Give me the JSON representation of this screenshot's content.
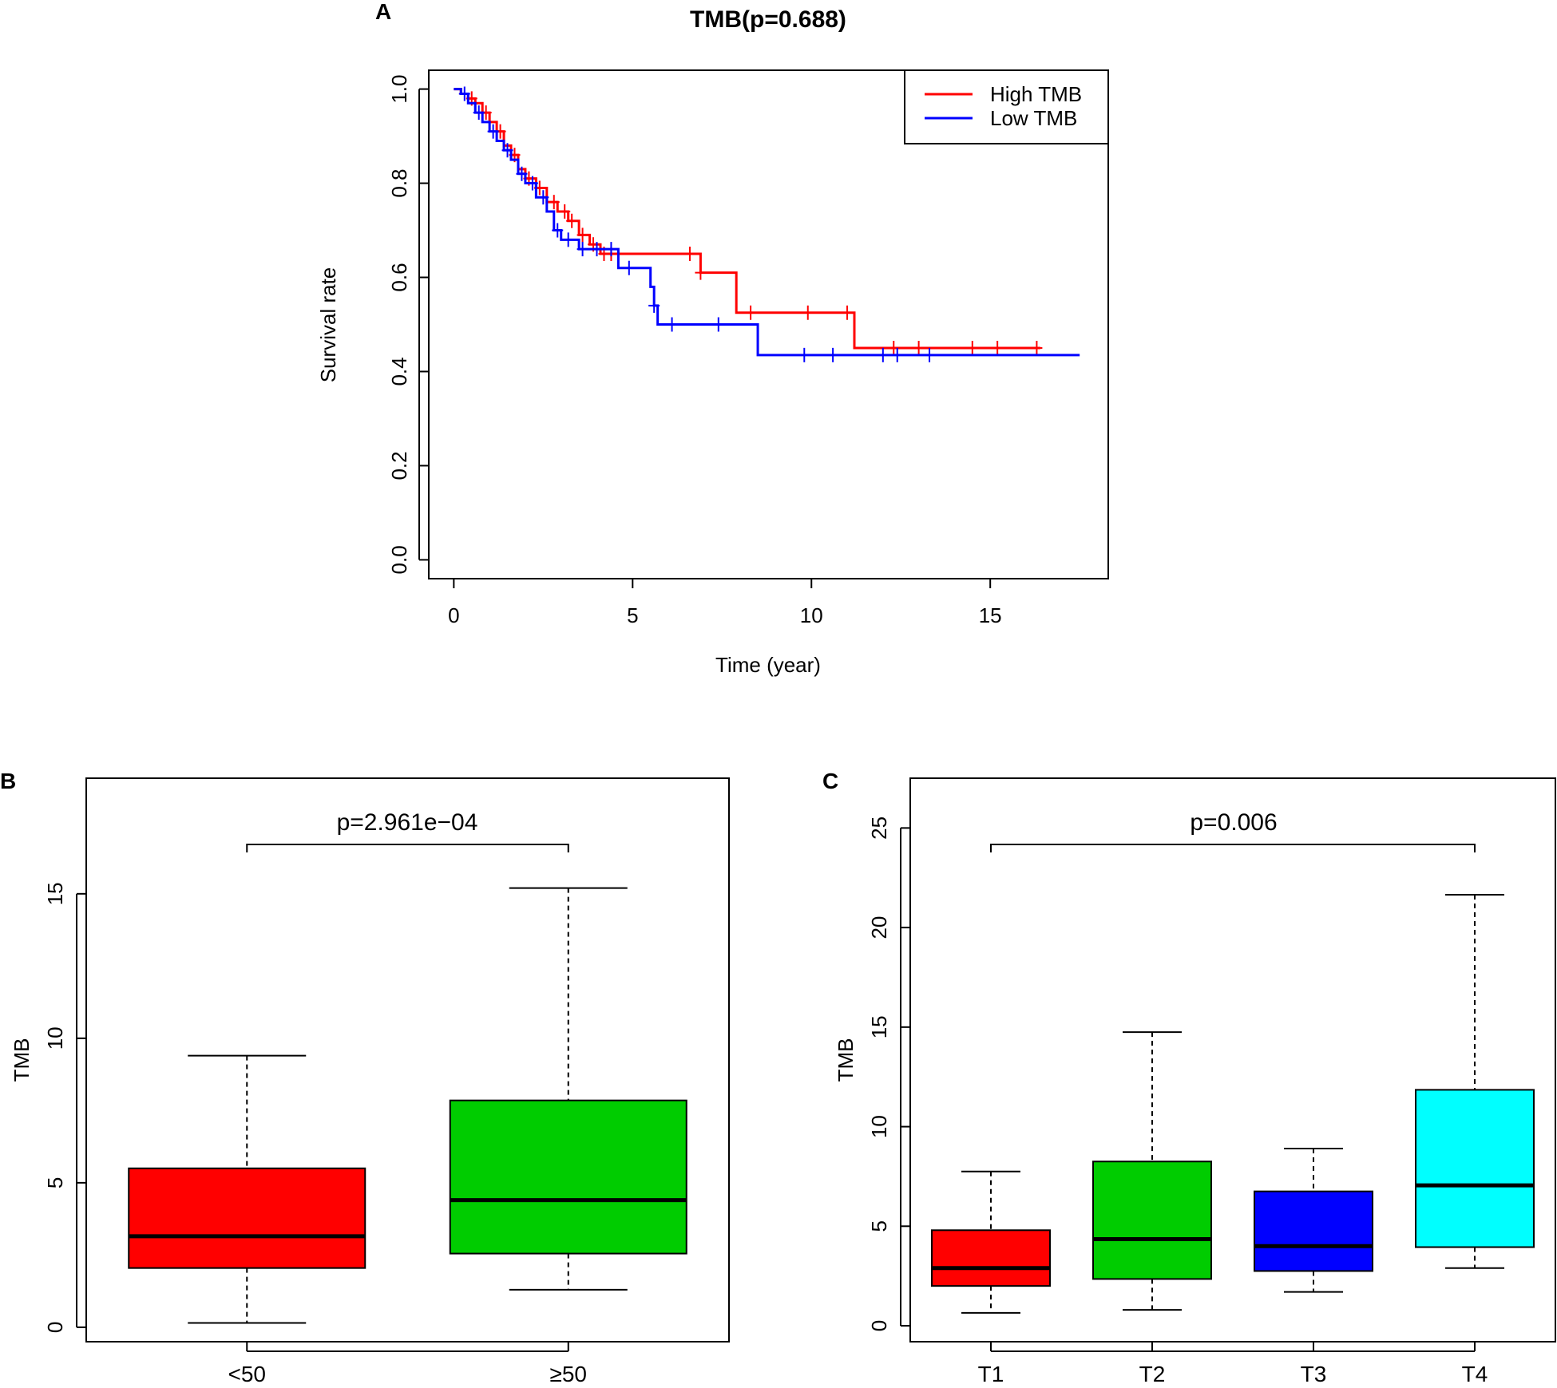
{
  "chart_data": [
    {
      "panel": "A",
      "type": "line",
      "title": "TMB(p=0.688)",
      "xlabel": "Time (year)",
      "ylabel": "Survival rate",
      "xlim": [
        -0.7,
        18.3
      ],
      "ylim": [
        -0.04,
        1.04
      ],
      "xticks": [
        0,
        5,
        10,
        15
      ],
      "yticks": [
        0.0,
        0.2,
        0.4,
        0.6,
        0.8,
        1.0
      ],
      "ytick_labels": [
        "0.0",
        "0.2",
        "0.4",
        "0.6",
        "0.8",
        "1.0"
      ],
      "legend_position": "top-right",
      "series": [
        {
          "name": "High TMB",
          "color": "#ff0000",
          "steps": [
            [
              0,
              1.0
            ],
            [
              0.2,
              0.99
            ],
            [
              0.4,
              0.98
            ],
            [
              0.6,
              0.97
            ],
            [
              0.8,
              0.95
            ],
            [
              1.0,
              0.93
            ],
            [
              1.2,
              0.91
            ],
            [
              1.4,
              0.88
            ],
            [
              1.6,
              0.86
            ],
            [
              1.8,
              0.83
            ],
            [
              2.0,
              0.81
            ],
            [
              2.3,
              0.79
            ],
            [
              2.6,
              0.76
            ],
            [
              2.9,
              0.74
            ],
            [
              3.2,
              0.72
            ],
            [
              3.5,
              0.69
            ],
            [
              3.8,
              0.67
            ],
            [
              4.1,
              0.65
            ],
            [
              6.9,
              0.61
            ],
            [
              7.9,
              0.525
            ],
            [
              11.2,
              0.45
            ],
            [
              16.4,
              0.45
            ]
          ],
          "censor_times": [
            0.5,
            0.9,
            1.3,
            1.7,
            2.1,
            2.4,
            2.8,
            3.1,
            3.3,
            3.6,
            3.9,
            4.2,
            4.4,
            6.6,
            6.9,
            8.3,
            9.9,
            11.0,
            12.3,
            13.0,
            14.5,
            15.2,
            16.3
          ]
        },
        {
          "name": "Low TMB",
          "color": "#0000ff",
          "steps": [
            [
              0,
              1.0
            ],
            [
              0.2,
              0.99
            ],
            [
              0.4,
              0.97
            ],
            [
              0.6,
              0.95
            ],
            [
              0.8,
              0.93
            ],
            [
              1.0,
              0.91
            ],
            [
              1.2,
              0.89
            ],
            [
              1.4,
              0.87
            ],
            [
              1.6,
              0.85
            ],
            [
              1.8,
              0.82
            ],
            [
              2.0,
              0.8
            ],
            [
              2.3,
              0.77
            ],
            [
              2.6,
              0.74
            ],
            [
              2.8,
              0.7
            ],
            [
              3.0,
              0.68
            ],
            [
              3.5,
              0.66
            ],
            [
              4.6,
              0.62
            ],
            [
              5.5,
              0.58
            ],
            [
              5.6,
              0.54
            ],
            [
              5.7,
              0.5
            ],
            [
              8.5,
              0.435
            ],
            [
              17.5,
              0.435
            ]
          ],
          "censor_times": [
            0.3,
            0.7,
            1.1,
            1.5,
            1.9,
            2.2,
            2.5,
            2.9,
            3.2,
            3.6,
            4.0,
            4.4,
            4.9,
            5.6,
            6.1,
            7.4,
            9.8,
            10.6,
            12.0,
            12.4,
            13.3
          ]
        }
      ]
    },
    {
      "panel": "B",
      "type": "box",
      "ylabel": "TMB",
      "annotation": "p=2.961e−04",
      "ylim": [
        -0.5,
        19.0
      ],
      "yticks": [
        0,
        5,
        10,
        15
      ],
      "categories": [
        "<50",
        "≥50"
      ],
      "boxes": [
        {
          "label": "<50",
          "color": "#ff0000",
          "whisker_low": 0.15,
          "q1": 2.05,
          "median": 3.15,
          "q3": 5.5,
          "whisker_high": 9.4
        },
        {
          "label": "≥50",
          "color": "#00cc00",
          "whisker_low": 1.3,
          "q1": 2.55,
          "median": 4.4,
          "q3": 7.85,
          "whisker_high": 15.2
        }
      ]
    },
    {
      "panel": "C",
      "type": "box",
      "ylabel": "TMB",
      "annotation": "p=0.006",
      "ylim": [
        -0.8,
        27.5
      ],
      "yticks": [
        0,
        5,
        10,
        15,
        20,
        25
      ],
      "categories": [
        "T1",
        "T2",
        "T3",
        "T4"
      ],
      "boxes": [
        {
          "label": "T1",
          "color": "#ff0000",
          "whisker_low": 0.65,
          "q1": 2.0,
          "median": 2.9,
          "q3": 4.8,
          "whisker_high": 7.75
        },
        {
          "label": "T2",
          "color": "#00cc00",
          "whisker_low": 0.8,
          "q1": 2.35,
          "median": 4.35,
          "q3": 8.25,
          "whisker_high": 14.75
        },
        {
          "label": "T3",
          "color": "#0000ff",
          "whisker_low": 1.7,
          "q1": 2.75,
          "median": 4.0,
          "q3": 6.75,
          "whisker_high": 8.9
        },
        {
          "label": "T4",
          "color": "#00ffff",
          "whisker_low": 2.9,
          "q1": 3.95,
          "median": 7.05,
          "q3": 11.85,
          "whisker_high": 21.65
        }
      ]
    }
  ],
  "panels": {
    "a": "A",
    "b": "B",
    "c": "C"
  }
}
